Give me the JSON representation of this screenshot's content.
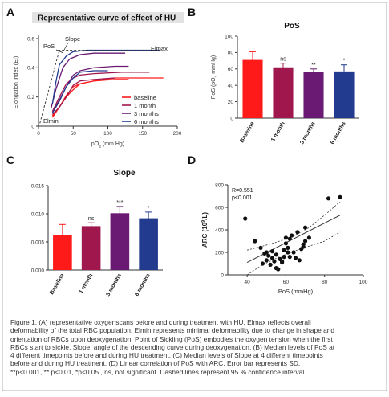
{
  "chart_data": [
    {
      "panel": "A",
      "type": "line",
      "title": "Representative curve of effect of HU",
      "xlabel": "pO₂ (mm Hg)",
      "ylabel": "Elongation Index (EI)",
      "xlim": [
        0,
        200
      ],
      "ylim": [
        0,
        0.6
      ],
      "xticks": [
        "0",
        "50",
        "100",
        "150",
        "200"
      ],
      "yticks": [
        "0",
        "0.2",
        "0.4",
        "0.6"
      ],
      "annotations": [
        "PoS",
        "Slope",
        "Elmax",
        "Elmin"
      ],
      "legend_position": "bottom-right",
      "series": [
        {
          "name": "baseline",
          "color": "#ff1a1a",
          "x": [
            20,
            30,
            40,
            50,
            60,
            80,
            110,
            130
          ],
          "y": [
            0.06,
            0.13,
            0.21,
            0.27,
            0.29,
            0.31,
            0.32,
            0.32
          ]
        },
        {
          "name": "baseline",
          "color": "#ff1a1a",
          "x": [
            20,
            30,
            40,
            50,
            60,
            80,
            110,
            150,
            180
          ],
          "y": [
            0.07,
            0.13,
            0.2,
            0.25,
            0.29,
            0.31,
            0.33,
            0.33,
            0.33
          ]
        },
        {
          "name": "1 month",
          "color": "#a0174e",
          "x": [
            20,
            30,
            40,
            50,
            60,
            80,
            120,
            160
          ],
          "y": [
            0.1,
            0.2,
            0.29,
            0.33,
            0.35,
            0.36,
            0.37,
            0.37
          ]
        },
        {
          "name": "1 month",
          "color": "#a0174e",
          "x": [
            20,
            30,
            40,
            50,
            60,
            80,
            110
          ],
          "y": [
            0.08,
            0.13,
            0.2,
            0.28,
            0.31,
            0.32,
            0.33
          ]
        },
        {
          "name": "3 months",
          "color": "#6a1a72",
          "x": [
            18,
            25,
            35,
            45,
            60,
            80,
            100,
            125
          ],
          "y": [
            0.12,
            0.25,
            0.4,
            0.46,
            0.49,
            0.5,
            0.5,
            0.5
          ]
        },
        {
          "name": "3 months",
          "color": "#6a1a72",
          "x": [
            20,
            30,
            40,
            50,
            60,
            80,
            110,
            130
          ],
          "y": [
            0.09,
            0.18,
            0.27,
            0.35,
            0.38,
            0.4,
            0.41,
            0.41
          ]
        },
        {
          "name": "6 months",
          "color": "#223b8f",
          "x": [
            20,
            25,
            30,
            40,
            50,
            70,
            100,
            140,
            175
          ],
          "y": [
            0.15,
            0.3,
            0.42,
            0.48,
            0.51,
            0.52,
            0.52,
            0.52,
            0.52
          ]
        },
        {
          "name": "6 months",
          "color": "#223b8f",
          "x": [
            20,
            30,
            40,
            50,
            60,
            80,
            100
          ],
          "y": [
            0.09,
            0.17,
            0.27,
            0.33,
            0.37,
            0.38,
            0.38
          ]
        }
      ]
    },
    {
      "panel": "B",
      "type": "bar",
      "title": "PoS",
      "ylabel": "PoS (pO₂ mmHg)",
      "ylim": [
        0,
        100
      ],
      "yticks": [
        "0",
        "20",
        "40",
        "60",
        "80",
        "100"
      ],
      "categories": [
        "Baseline",
        "1 month",
        "3 months",
        "6 months"
      ],
      "values": [
        71,
        62,
        56,
        57
      ],
      "errors": [
        10,
        5,
        4,
        8
      ],
      "significance": [
        "",
        "ns",
        "**",
        "*"
      ],
      "colors": [
        "#ff1a1a",
        "#a0174e",
        "#6a1a72",
        "#223b8f"
      ]
    },
    {
      "panel": "C",
      "type": "bar",
      "title": "Slope",
      "ylim": [
        0,
        0.015
      ],
      "yticks": [
        "0.000",
        "0.005",
        "0.010",
        "0.015"
      ],
      "categories": [
        "Baseline",
        "1 month",
        "3 months",
        "6 months"
      ],
      "values": [
        0.0062,
        0.0078,
        0.0101,
        0.0092
      ],
      "errors": [
        0.0019,
        0.0006,
        0.0012,
        0.0011
      ],
      "significance": [
        "",
        "ns",
        "***",
        "*"
      ],
      "colors": [
        "#ff1a1a",
        "#a0174e",
        "#6a1a72",
        "#223b8f"
      ]
    },
    {
      "panel": "D",
      "type": "scatter",
      "xlabel": "PoS (mmHg)",
      "ylabel": "ARC (10⁹/L)",
      "xlim": [
        30,
        100
      ],
      "ylim": [
        0,
        800
      ],
      "xticks": [
        "40",
        "60",
        "80",
        "100"
      ],
      "yticks": [
        "0",
        "200",
        "400",
        "600",
        "800"
      ],
      "stats": [
        "R=0.551",
        "p<0.001"
      ],
      "x": [
        39,
        44,
        47,
        48,
        49,
        50,
        50,
        51,
        52,
        53,
        53,
        54,
        55,
        55,
        56,
        57,
        58,
        58,
        59,
        59,
        60,
        60,
        61,
        61,
        62,
        62,
        63,
        64,
        65,
        66,
        67,
        68,
        69,
        69,
        70,
        70,
        72,
        82,
        88
      ],
      "y": [
        500,
        300,
        240,
        100,
        190,
        200,
        130,
        170,
        90,
        210,
        150,
        120,
        60,
        180,
        50,
        140,
        120,
        110,
        220,
        160,
        330,
        280,
        240,
        200,
        320,
        160,
        350,
        200,
        150,
        380,
        130,
        230,
        270,
        250,
        300,
        420,
        330,
        680,
        690
      ],
      "regression": {
        "x": [
          40,
          88
        ],
        "y": [
          110,
          530
        ]
      },
      "ci_upper": {
        "x": [
          40,
          48,
          56,
          64,
          72,
          80,
          88
        ],
        "y": [
          220,
          255,
          295,
          345,
          420,
          530,
          650
        ]
      },
      "ci_lower": {
        "x": [
          40,
          48,
          56,
          64,
          72,
          80,
          88
        ],
        "y": [
          0,
          90,
          155,
          210,
          255,
          300,
          380
        ]
      }
    }
  ],
  "caption": "Figure 1. (A) representative oxygenscans before and during treatment with HU, Elmax reflects overall\ndeformability of the total RBC population. Elmin represents minimal deformability due to change in shape and\norientation of RBCs upon deoxygenation. Point of Sickling (PoS) embodies the oxygen tension when the first\nRBCs start to sickle, Slope, angle of the descending curve during deoxygenation. (B) Median levels of PoS at\n4 different timepoints before and during HU treatment. (C) Median levels of Slope at 4 different timepoints\nbefore and during HU treatment. (D) Linear correlation of PoS with ARC. Error bar represents SD.\n**p<0.001, ** p<0.01, *p<0.05., ns, not significant. Dashed lines represent 95 % confidence interval."
}
